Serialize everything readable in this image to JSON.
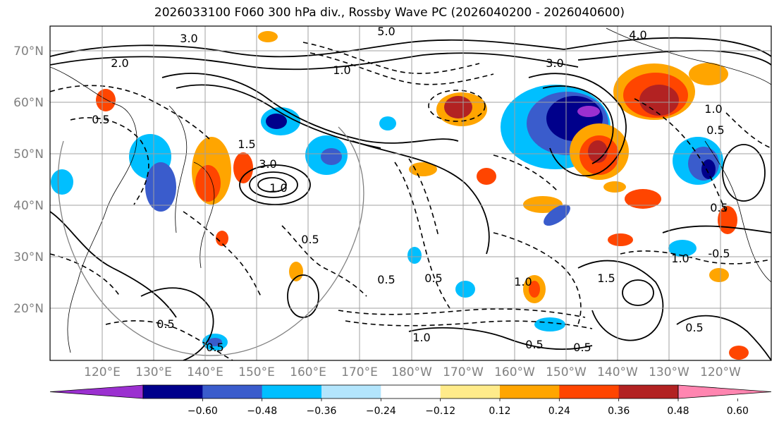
{
  "title": "2026033100 F060 300 hPa div., Rossby Wave PC (2026040200 - 2026040600)",
  "lat_labels": [
    "70°N",
    "60°N",
    "50°N",
    "40°N",
    "30°N",
    "20°N"
  ],
  "lon_labels": [
    "120°E",
    "130°E",
    "140°E",
    "150°E",
    "160°E",
    "170°E",
    "180°W",
    "170°W",
    "160°W",
    "150°W",
    "140°W",
    "130°W",
    "120°W"
  ],
  "colorbar": {
    "colors": [
      "#9b30d0",
      "#00008b",
      "#3a5ccc",
      "#00bfff",
      "#b3e5fc",
      "#ffffff",
      "#ffeb8a",
      "#ffa500",
      "#ff4500",
      "#b22222",
      "#ff85b0"
    ],
    "tick_labels": [
      "−0.60",
      "−0.48",
      "−0.36",
      "−0.24",
      "−0.12",
      "0.12",
      "0.24",
      "0.36",
      "0.48",
      "0.60"
    ]
  },
  "contour_labels": [
    "5.0",
    "3.0",
    "3.0",
    "2.0",
    "4.0",
    "1.0",
    "1.0",
    "0.5",
    "0.5",
    "0.5",
    "0.5",
    "1.5",
    "3.0",
    "1.0",
    "0.5",
    "1.0",
    "0.5",
    "0.5",
    "0.5",
    "-0.5",
    "1.0",
    "0.5",
    "1.0",
    "1.5",
    "0.5",
    "0.5"
  ]
}
